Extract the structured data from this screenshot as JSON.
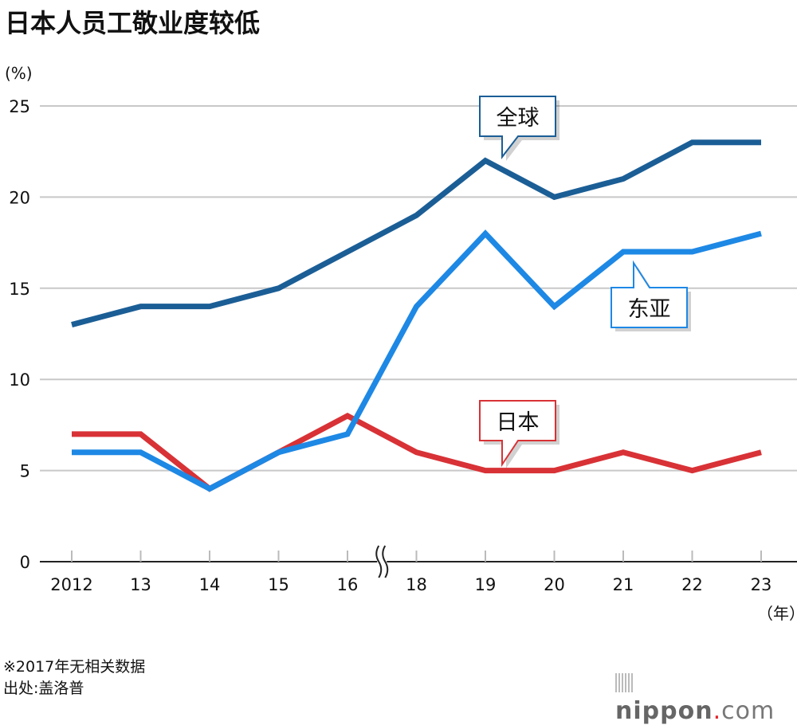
{
  "chart_data": {
    "type": "line",
    "title": "日本人员工敬业度较低",
    "ylabel": "(%)",
    "xlabel": "（年）",
    "categories": [
      "2012",
      "13",
      "14",
      "15",
      "16",
      "18",
      "19",
      "20",
      "21",
      "22",
      "23"
    ],
    "ylim": [
      0,
      25
    ],
    "yticks": [
      0,
      5,
      10,
      15,
      20,
      25
    ],
    "grid": true,
    "axis_break_between": [
      "16",
      "18"
    ],
    "series": [
      {
        "name": "全球",
        "color": "#1b5e96",
        "values": [
          13,
          14,
          14,
          15,
          17,
          19,
          22,
          20,
          21,
          23,
          23
        ]
      },
      {
        "name": "东亚",
        "color": "#1e88e5",
        "values": [
          6,
          6,
          4,
          6,
          7,
          14,
          18,
          14,
          17,
          17,
          18
        ]
      },
      {
        "name": "日本",
        "color": "#d83236",
        "values": [
          7,
          7,
          4,
          6,
          8,
          6,
          5,
          5,
          6,
          5,
          6
        ]
      }
    ],
    "notes": [
      "※2017年无相关数据",
      "出处:盖洛普"
    ]
  },
  "brand": {
    "name": "nippon",
    "dot": ".",
    "suffix": "com",
    "accent": "#e5242b"
  }
}
